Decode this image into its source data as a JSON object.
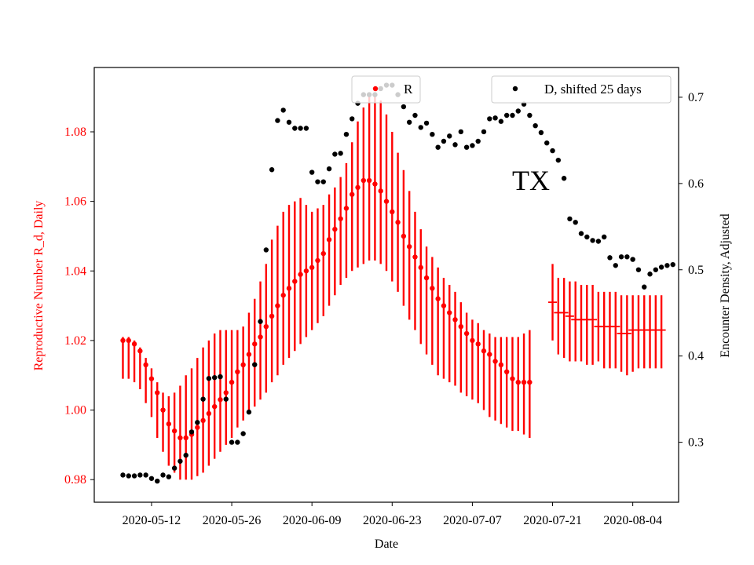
{
  "chart_data": {
    "type": "scatter",
    "annotation": "TX",
    "xlabel": "Date",
    "ylabel_left": "Reproductive Number R_d, Daily",
    "ylabel_right": "Encounter Density, Adjusted",
    "x_ticks": [
      "2020-05-12",
      "2020-05-26",
      "2020-06-09",
      "2020-06-23",
      "2020-07-07",
      "2020-07-21",
      "2020-08-04"
    ],
    "y_left_ticks": [
      "0.98",
      "1.00",
      "1.02",
      "1.04",
      "1.06",
      "1.08"
    ],
    "y_right_ticks": [
      "0.3",
      "0.4",
      "0.5",
      "0.6",
      "0.7"
    ],
    "x_range": [
      "2020-05-02",
      "2020-08-12"
    ],
    "y_left_range": [
      0.9735,
      1.0985
    ],
    "y_right_range": [
      0.2305,
      0.7345
    ],
    "colors": {
      "R": "#ff0000",
      "D": "#000000",
      "left_axis_text": "#ff0000"
    },
    "legend": {
      "R": {
        "label": "R",
        "placement": "upper-center"
      },
      "D": {
        "label": "D, shifted 25 days",
        "placement": "upper-right"
      }
    },
    "series": [
      {
        "name": "R",
        "axis": "left",
        "start_date": "2020-05-07",
        "style": "points with vertical error bars",
        "values": [
          1.02,
          1.02,
          1.019,
          1.017,
          1.013,
          1.009,
          1.005,
          1.0,
          0.996,
          0.994,
          0.992,
          0.992,
          0.993,
          0.995,
          0.997,
          0.999,
          1.001,
          1.003,
          1.005,
          1.008,
          1.011,
          1.013,
          1.016,
          1.019,
          1.021,
          1.024,
          1.027,
          1.03,
          1.033,
          1.035,
          1.037,
          1.039,
          1.04,
          1.041,
          1.043,
          1.045,
          1.049,
          1.052,
          1.055,
          1.058,
          1.062,
          1.064,
          1.066,
          1.066,
          1.065,
          1.063,
          1.06,
          1.057,
          1.054,
          1.05,
          1.047,
          1.044,
          1.041,
          1.038,
          1.035,
          1.032,
          1.03,
          1.028,
          1.026,
          1.024,
          1.022,
          1.02,
          1.019,
          1.017,
          1.016,
          1.014,
          1.013,
          1.011,
          1.009,
          1.008,
          1.008,
          1.008
        ],
        "lower": [
          1.009,
          1.009,
          1.008,
          1.006,
          1.002,
          0.998,
          0.992,
          0.988,
          0.984,
          0.982,
          0.98,
          0.98,
          0.98,
          0.981,
          0.982,
          0.984,
          0.986,
          0.988,
          0.99,
          0.992,
          0.995,
          0.997,
          0.999,
          1.001,
          1.003,
          1.005,
          1.008,
          1.01,
          1.013,
          1.015,
          1.017,
          1.019,
          1.021,
          1.023,
          1.025,
          1.027,
          1.03,
          1.033,
          1.036,
          1.038,
          1.04,
          1.041,
          1.042,
          1.043,
          1.043,
          1.042,
          1.04,
          1.037,
          1.034,
          1.03,
          1.026,
          1.023,
          1.019,
          1.016,
          1.013,
          1.01,
          1.009,
          1.008,
          1.007,
          1.005,
          1.004,
          1.003,
          1.002,
          1.0,
          0.998,
          0.997,
          0.996,
          0.995,
          0.994,
          0.994,
          0.993,
          0.992
        ],
        "upper": [
          1.021,
          1.021,
          1.02,
          1.018,
          1.015,
          1.012,
          1.008,
          1.005,
          1.004,
          1.005,
          1.007,
          1.01,
          1.012,
          1.015,
          1.018,
          1.02,
          1.022,
          1.023,
          1.023,
          1.023,
          1.023,
          1.024,
          1.028,
          1.032,
          1.037,
          1.042,
          1.049,
          1.053,
          1.057,
          1.059,
          1.06,
          1.061,
          1.059,
          1.057,
          1.058,
          1.059,
          1.062,
          1.064,
          1.067,
          1.071,
          1.077,
          1.083,
          1.087,
          1.091,
          1.091,
          1.089,
          1.085,
          1.08,
          1.074,
          1.069,
          1.063,
          1.057,
          1.052,
          1.047,
          1.044,
          1.041,
          1.038,
          1.036,
          1.034,
          1.031,
          1.028,
          1.026,
          1.025,
          1.023,
          1.022,
          1.021,
          1.021,
          1.021,
          1.021,
          1.021,
          1.022,
          1.023
        ]
      },
      {
        "name": "R",
        "axis": "left",
        "start_date": "2020-07-21",
        "style": "projection, horizontal marks with vertical error bars",
        "values": [
          1.031,
          1.028,
          1.028,
          1.027,
          1.026,
          1.026,
          1.026,
          1.026,
          1.024,
          1.024,
          1.024,
          1.024,
          1.022,
          1.022,
          1.023,
          1.023,
          1.023,
          1.023,
          1.023,
          1.023
        ],
        "lower": [
          1.02,
          1.016,
          1.015,
          1.014,
          1.014,
          1.014,
          1.013,
          1.013,
          1.014,
          1.012,
          1.012,
          1.012,
          1.011,
          1.01,
          1.011,
          1.012,
          1.012,
          1.012,
          1.012,
          1.012
        ],
        "upper": [
          1.042,
          1.038,
          1.038,
          1.037,
          1.037,
          1.036,
          1.036,
          1.036,
          1.034,
          1.034,
          1.034,
          1.034,
          1.033,
          1.033,
          1.033,
          1.033,
          1.033,
          1.033,
          1.033,
          1.033
        ]
      },
      {
        "name": "D, shifted 25 days",
        "axis": "right",
        "start_date": "2020-05-07",
        "values": [
          0.262,
          0.261,
          0.261,
          0.262,
          0.262,
          0.258,
          0.255,
          0.262,
          0.26,
          0.27,
          0.278,
          0.285,
          0.312,
          0.323,
          0.35,
          0.374,
          0.375,
          0.376,
          0.35,
          0.3,
          0.3,
          0.31,
          0.335,
          0.39,
          0.44,
          0.523,
          0.616,
          0.673,
          0.685,
          0.671,
          0.664,
          0.664,
          0.664,
          0.613,
          0.602,
          0.602,
          0.617,
          0.634,
          0.635,
          0.657,
          0.675,
          0.693,
          0.703,
          0.703,
          0.703,
          0.71,
          0.714,
          0.714,
          0.703,
          0.689,
          0.671,
          0.679,
          0.665,
          0.67,
          0.657,
          0.642,
          0.649,
          0.655,
          0.645,
          0.66,
          0.642,
          0.644,
          0.649,
          0.66,
          0.675,
          0.676,
          0.672,
          0.679,
          0.679,
          0.684,
          0.692,
          0.679,
          0.667,
          0.659,
          0.647,
          0.638,
          0.627,
          0.606,
          0.559,
          0.555,
          0.542,
          0.538,
          0.534,
          0.533,
          0.538,
          0.514,
          0.505,
          0.515,
          0.515,
          0.512,
          0.5,
          0.48,
          0.495,
          0.5,
          0.503,
          0.505,
          0.506
        ]
      }
    ]
  }
}
